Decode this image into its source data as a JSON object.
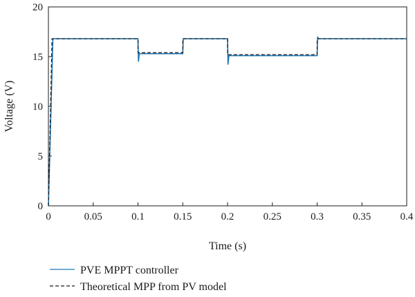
{
  "chart_data": {
    "type": "line",
    "xlabel": "Time (s)",
    "ylabel": "Voltage (V)",
    "xlim": [
      0,
      0.4
    ],
    "ylim": [
      0,
      20
    ],
    "xticks": [
      0,
      0.05,
      0.1,
      0.15,
      0.2,
      0.25,
      0.3,
      0.35,
      0.4
    ],
    "xtick_labels": [
      "0",
      "0.05",
      "0.1",
      "0.15",
      "0.2",
      "0.25",
      "0.3",
      "0.35",
      "0.4"
    ],
    "yticks": [
      0,
      5,
      10,
      15,
      20
    ],
    "ytick_labels": [
      "0",
      "5",
      "10",
      "15",
      "20"
    ],
    "grid": false,
    "legend_position": "bottom",
    "series": [
      {
        "name": "PVE MPPT controller",
        "color": "#1f77b4",
        "style": "solid",
        "x": [
          0,
          0.005,
          0.1,
          0.1005,
          0.1015,
          0.15,
          0.1505,
          0.2,
          0.2005,
          0.2015,
          0.3,
          0.3005,
          0.3015,
          0.4
        ],
        "y": [
          0,
          16.8,
          16.8,
          14.5,
          15.3,
          15.3,
          16.8,
          16.8,
          14.2,
          15.1,
          15.1,
          17.0,
          16.8,
          16.8
        ]
      },
      {
        "name": "Theoretical MPP from PV model",
        "color": "#1a1a1a",
        "style": "dashed",
        "x": [
          0,
          0.004,
          0.1,
          0.1,
          0.15,
          0.15,
          0.2,
          0.2,
          0.3,
          0.3,
          0.4
        ],
        "y": [
          0,
          16.8,
          16.8,
          15.4,
          15.4,
          16.8,
          16.8,
          15.2,
          15.2,
          16.8,
          16.8
        ]
      }
    ]
  }
}
